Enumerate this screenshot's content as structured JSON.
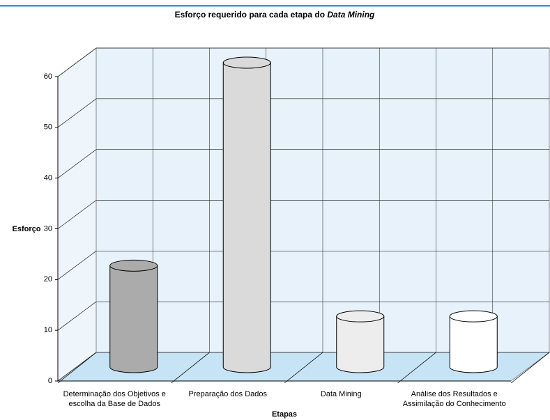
{
  "chart_data": {
    "type": "cylinder",
    "title": {
      "text": "Esforço requerido para cada etapa do",
      "emphasis": "Data Mining"
    },
    "x_label": "Etapas",
    "y_label": "Esforço",
    "categories": [
      [
        "Determinação dos Objetivos e",
        "escolha da Base de Dados"
      ],
      [
        "Preparação dos Dados"
      ],
      [
        "Data Mining"
      ],
      [
        "Análise dos Resultados e",
        "Assimilação do Conhecimento"
      ]
    ],
    "values": [
      20,
      60,
      10,
      10
    ],
    "colors": [
      "#ababab",
      "#dadada",
      "#ededed",
      "#ffffff"
    ],
    "ylim": [
      0,
      60
    ],
    "yticks": [
      0,
      10,
      20,
      30,
      40,
      50,
      60
    ],
    "grid": true
  }
}
